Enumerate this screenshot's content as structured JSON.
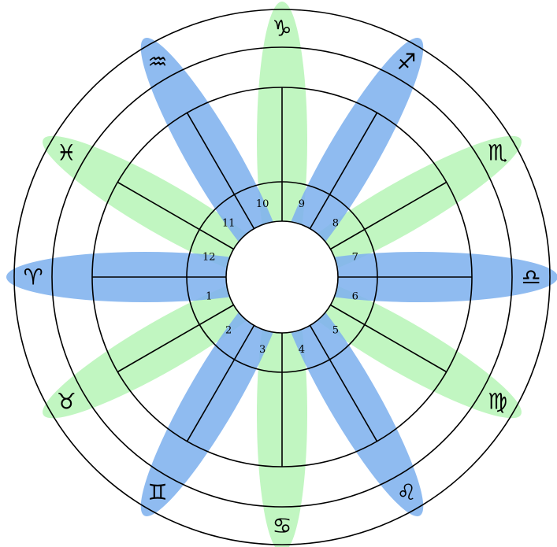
{
  "colors": {
    "fire_air_petal": "#7fb2ee",
    "earth_water_petal": "#b8f5b8",
    "stroke": "#000000",
    "center": "#ffffff"
  },
  "signs": [
    {
      "name": "aries-icon",
      "glyph": "♈",
      "element": "blue"
    },
    {
      "name": "taurus-icon",
      "glyph": "♉",
      "element": "green"
    },
    {
      "name": "gemini-icon",
      "glyph": "♊",
      "element": "blue"
    },
    {
      "name": "cancer-icon",
      "glyph": "♋",
      "element": "green"
    },
    {
      "name": "leo-icon",
      "glyph": "♌",
      "element": "blue"
    },
    {
      "name": "virgo-icon",
      "glyph": "♍",
      "element": "green"
    },
    {
      "name": "libra-icon",
      "glyph": "♎",
      "element": "blue"
    },
    {
      "name": "scorpio-icon",
      "glyph": "♏",
      "element": "green"
    },
    {
      "name": "sagittarius-icon",
      "glyph": "♐",
      "element": "blue"
    },
    {
      "name": "capricorn-icon",
      "glyph": "♑",
      "element": "green"
    },
    {
      "name": "aquarius-icon",
      "glyph": "♒",
      "element": "blue"
    },
    {
      "name": "pisces-icon",
      "glyph": "♓",
      "element": "green"
    }
  ],
  "houses": [
    "1",
    "2",
    "3",
    "4",
    "5",
    "6",
    "7",
    "8",
    "9",
    "10",
    "11",
    "12"
  ]
}
